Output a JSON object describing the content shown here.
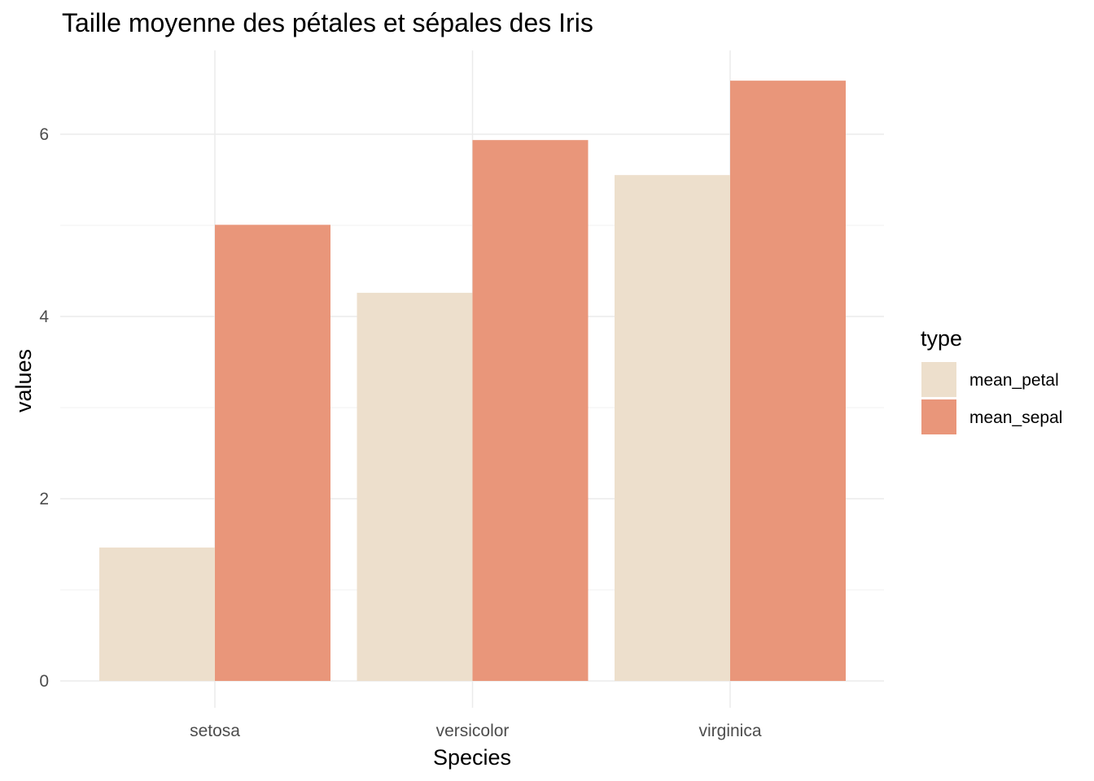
{
  "chart_data": {
    "type": "bar",
    "title": "Taille moyenne des pétales et sépales des Iris",
    "xlabel": "Species",
    "ylabel": "values",
    "categories": [
      "setosa",
      "versicolor",
      "virginica"
    ],
    "series": [
      {
        "name": "mean_petal",
        "values": [
          1.464,
          4.26,
          5.552
        ],
        "color": "#EDDFCC"
      },
      {
        "name": "mean_sepal",
        "values": [
          5.006,
          5.936,
          6.588
        ],
        "color": "#E9967A"
      }
    ],
    "ylim": [
      0,
      6.9
    ],
    "yticks": [
      0,
      2,
      4,
      6
    ],
    "grid": true,
    "legend": {
      "title": "type",
      "position": "right"
    }
  }
}
